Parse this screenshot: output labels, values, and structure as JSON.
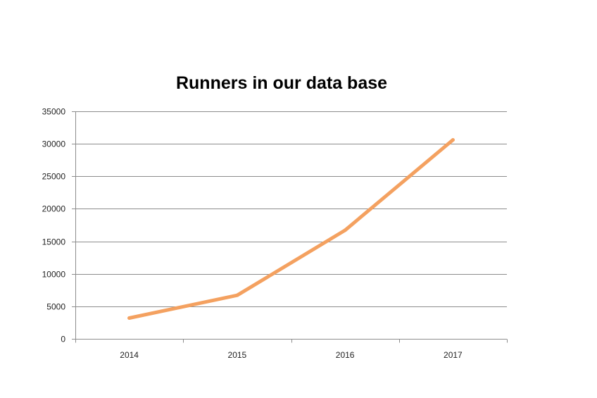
{
  "chart_data": {
    "type": "line",
    "title": "Runners in our data base",
    "xlabel": "",
    "ylabel": "",
    "categories": [
      "2014",
      "2015",
      "2016",
      "2017"
    ],
    "series": [
      {
        "values": [
          3200,
          6700,
          16700,
          30600
        ],
        "color": "#f4a160"
      }
    ],
    "ylim": [
      0,
      35000
    ],
    "yticks": [
      0,
      5000,
      10000,
      15000,
      20000,
      25000,
      30000,
      35000
    ],
    "grid": true,
    "legend": "none"
  }
}
